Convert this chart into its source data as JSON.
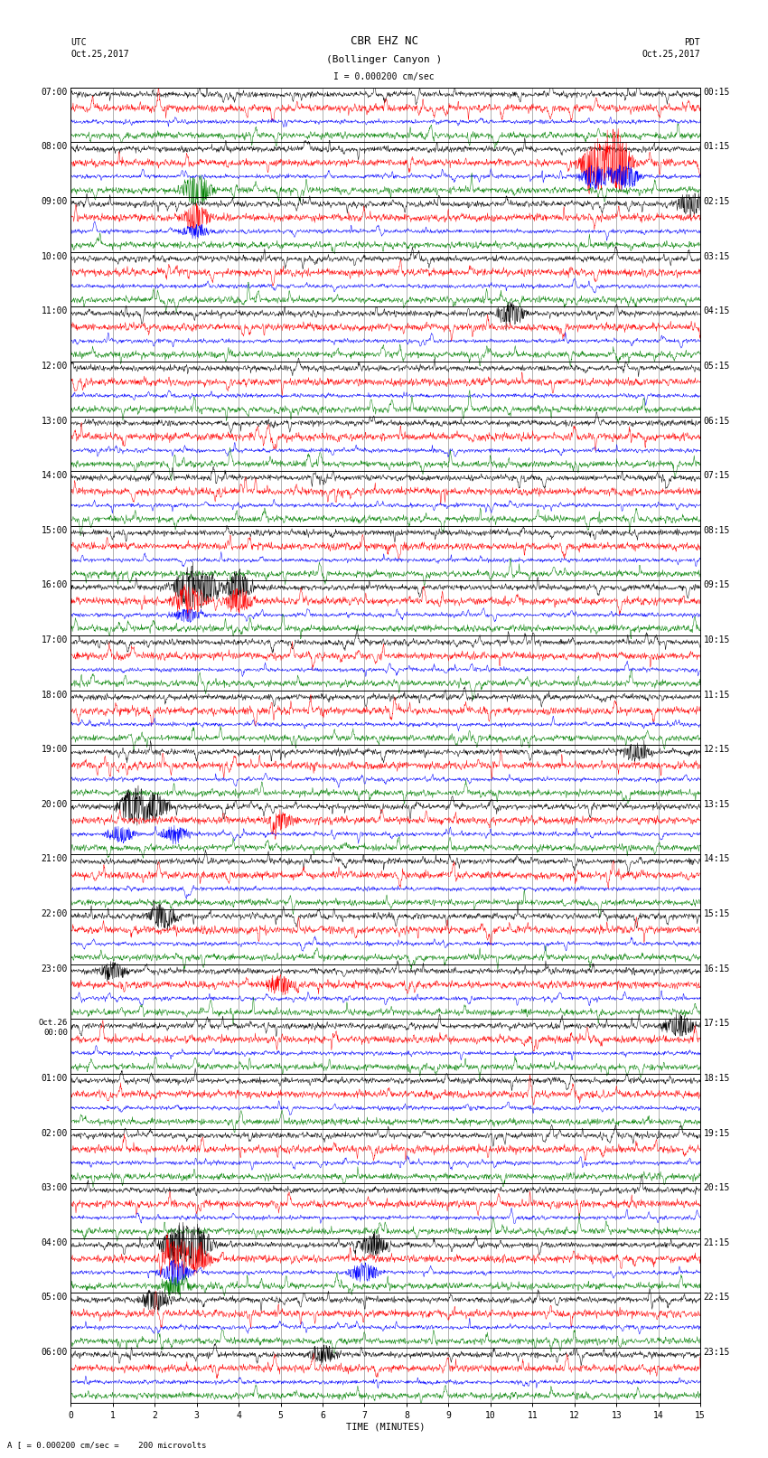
{
  "title_line1": "CBR EHZ NC",
  "title_line2": "(Bollinger Canyon )",
  "scale_label": "I = 0.000200 cm/sec",
  "bottom_label": "A [ = 0.000200 cm/sec =    200 microvolts",
  "xlabel": "TIME (MINUTES)",
  "left_header_line1": "UTC",
  "left_header_line2": "Oct.25,2017",
  "right_header_line1": "PDT",
  "right_header_line2": "Oct.25,2017",
  "x_min": 0,
  "x_max": 15,
  "x_ticks": [
    0,
    1,
    2,
    3,
    4,
    5,
    6,
    7,
    8,
    9,
    10,
    11,
    12,
    13,
    14,
    15
  ],
  "trace_colors": [
    "black",
    "red",
    "blue",
    "green"
  ],
  "hour_labels_left": [
    "07:00",
    "08:00",
    "09:00",
    "10:00",
    "11:00",
    "12:00",
    "13:00",
    "14:00",
    "15:00",
    "16:00",
    "17:00",
    "18:00",
    "19:00",
    "20:00",
    "21:00",
    "22:00",
    "23:00",
    "Oct.26\n00:00",
    "01:00",
    "02:00",
    "03:00",
    "04:00",
    "05:00",
    "06:00"
  ],
  "hour_labels_right": [
    "00:15",
    "01:15",
    "02:15",
    "03:15",
    "04:15",
    "05:15",
    "06:15",
    "07:15",
    "08:15",
    "09:15",
    "10:15",
    "11:15",
    "12:15",
    "13:15",
    "14:15",
    "15:15",
    "16:15",
    "17:15",
    "18:15",
    "19:15",
    "20:15",
    "21:15",
    "22:15",
    "23:15"
  ],
  "n_hours": 24,
  "traces_per_hour": 4,
  "bg_color": "white",
  "grid_color": "#777777",
  "figsize": [
    8.5,
    16.13
  ],
  "dpi": 100,
  "font_size_labels": 7,
  "font_size_title": 9
}
